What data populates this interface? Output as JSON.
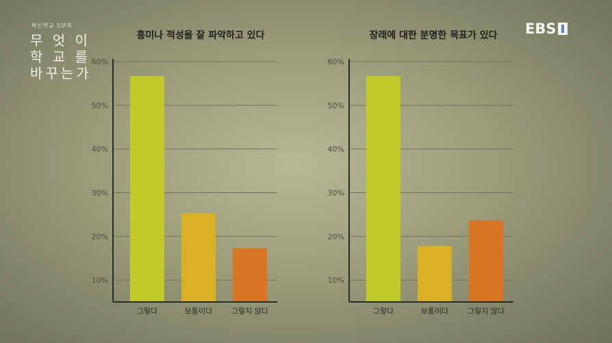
{
  "program": {
    "subtitle": "혁신학교 5부작",
    "title_lines": [
      "무 엇 이",
      "학 교 를",
      "바꾸는가"
    ]
  },
  "broadcaster": {
    "logo_text": "EBS"
  },
  "colors": {
    "bar_1": "#c3c92a",
    "bar_2": "#d8b124",
    "bar_3": "#d87422",
    "grid": "#6f7258",
    "axis": "#2b2b25"
  },
  "chart_data": [
    {
      "type": "bar",
      "title": "흥미나 적성을 잘 파악하고 있다",
      "categories": [
        "그렇다",
        "보통이다",
        "그렇지 않다"
      ],
      "values": [
        56.7,
        25.3,
        17.3
      ],
      "ylim": [
        5,
        60
      ],
      "yticks": [
        "60%",
        "50%",
        "40%",
        "30%",
        "20%",
        "10%"
      ],
      "grid": true
    },
    {
      "type": "bar",
      "title": "장래에 대한 분명한 목표가 있다",
      "categories": [
        "그렇다",
        "보통이다",
        "그렇지 않다"
      ],
      "values": [
        56.7,
        17.8,
        23.6
      ],
      "ylim": [
        5,
        60
      ],
      "yticks": [
        "60%",
        "50%",
        "40%",
        "30%",
        "20%",
        "10%"
      ],
      "grid": true
    }
  ]
}
